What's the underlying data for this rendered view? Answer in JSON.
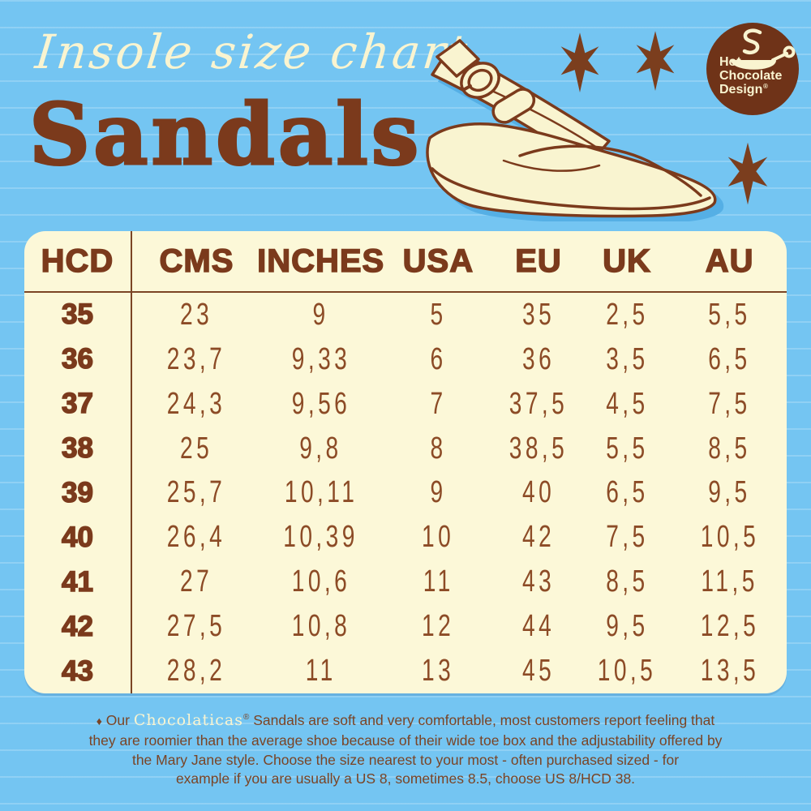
{
  "header": {
    "script_title": "Insole size chart",
    "main_title": "Sandals"
  },
  "logo": {
    "line1": "Hot",
    "line2": "Chocolate",
    "line3": "Design",
    "registered": "®"
  },
  "table": {
    "columns": [
      "HCD",
      "CMS",
      "INCHES",
      "USA",
      "EU",
      "UK",
      "AU"
    ],
    "rows": [
      [
        "35",
        "23",
        "9",
        "5",
        "35",
        "2,5",
        "5,5"
      ],
      [
        "36",
        "23,7",
        "9,33",
        "6",
        "36",
        "3,5",
        "6,5"
      ],
      [
        "37",
        "24,3",
        "9,56",
        "7",
        "37,5",
        "4,5",
        "7,5"
      ],
      [
        "38",
        "25",
        "9,8",
        "8",
        "38,5",
        "5,5",
        "8,5"
      ],
      [
        "39",
        "25,7",
        "10,11",
        "9",
        "40",
        "6,5",
        "9,5"
      ],
      [
        "40",
        "26,4",
        "10,39",
        "10",
        "42",
        "7,5",
        "10,5"
      ],
      [
        "41",
        "27",
        "10,6",
        "11",
        "43",
        "8,5",
        "11,5"
      ],
      [
        "42",
        "27,5",
        "10,8",
        "12",
        "44",
        "9,5",
        "12,5"
      ],
      [
        "43",
        "28,2",
        "11",
        "13",
        "45",
        "10,5",
        "13,5"
      ]
    ]
  },
  "chart_data": {
    "type": "table",
    "title": "Insole size chart — Sandals",
    "columns": [
      "HCD",
      "CMS",
      "INCHES",
      "USA",
      "EU",
      "UK",
      "AU"
    ],
    "rows": [
      [
        "35",
        "23",
        "9",
        "5",
        "35",
        "2,5",
        "5,5"
      ],
      [
        "36",
        "23,7",
        "9,33",
        "6",
        "36",
        "3,5",
        "6,5"
      ],
      [
        "37",
        "24,3",
        "9,56",
        "7",
        "37,5",
        "4,5",
        "7,5"
      ],
      [
        "38",
        "25",
        "9,8",
        "8",
        "38,5",
        "5,5",
        "8,5"
      ],
      [
        "39",
        "25,7",
        "10,11",
        "9",
        "40",
        "6,5",
        "9,5"
      ],
      [
        "40",
        "26,4",
        "10,39",
        "10",
        "42",
        "7,5",
        "10,5"
      ],
      [
        "41",
        "27",
        "10,6",
        "11",
        "43",
        "8,5",
        "11,5"
      ],
      [
        "42",
        "27,5",
        "10,8",
        "12",
        "44",
        "9,5",
        "12,5"
      ],
      [
        "43",
        "28,2",
        "11",
        "13",
        "45",
        "10,5",
        "13,5"
      ]
    ]
  },
  "footer": {
    "bullet": "♦",
    "lead": " Our ",
    "brand": "Chocolaticas",
    "brand_reg": "®",
    "line1_rest": " Sandals are soft and very comfortable, most customers report feeling that",
    "line2": "they are roomier than the average shoe because of their wide toe box and the adjustability offered by",
    "line3": "the Mary Jane style. Choose the size nearest to your most - often  purchased sized - for",
    "line4": "example if you are usually a US 8, sometimes 8.5, choose US 8/HCD 38."
  },
  "icons": {
    "stars": "six-point-star-icon",
    "sandal": "wedge-slingback-sandal-illustration",
    "logo_cup": "hot-chocolate-cup-icon",
    "bullet": "diamond-bullet"
  },
  "colors": {
    "background": "#74C5F2",
    "stripe": "rgba(255,255,255,0.20)",
    "cream": "#F9F4D0",
    "brown": "#7B3A1C",
    "table_background": "#FCF8D8",
    "data_text": "#8C4B26",
    "logo_circle": "#6F3318",
    "shadow_blue": "#55AFE5"
  }
}
